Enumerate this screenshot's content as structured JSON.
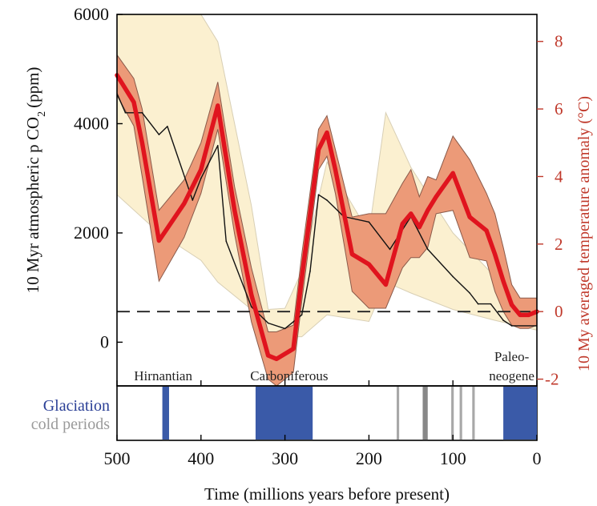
{
  "chart_data": {
    "type": "line",
    "xlabel": "Time (millions years before present)",
    "ylabel_left": "10 Myr atmospheric p CO",
    "ylabel_left_sub": "2",
    "ylabel_left_unit": "(ppm)",
    "ylabel_right": "10 My averaged temperature anomaly (°C)",
    "xlim": [
      500,
      0
    ],
    "ylim_left": [
      -800,
      6000
    ],
    "ylim_right": [
      -2.2,
      8.8
    ],
    "x_ticks": [
      "500",
      "400",
      "300",
      "200",
      "100",
      "0"
    ],
    "x_tick_values": [
      500,
      400,
      300,
      200,
      100,
      0
    ],
    "left_ticks": [
      "0",
      "2000",
      "4000",
      "6000"
    ],
    "left_tick_values": [
      0,
      2000,
      4000,
      6000
    ],
    "right_ticks": [
      "-2",
      "0",
      "2",
      "4",
      "6",
      "8"
    ],
    "right_tick_values": [
      -2,
      0,
      2,
      4,
      6,
      8
    ],
    "colors": {
      "co2_band": "#fbf0d0",
      "co2_band_edge": "#d8cfb5",
      "temp_band": "#ec9a78",
      "temp_band_edge": "#8a5a4a",
      "temp_line": "#e0141e",
      "co2_line": "#111111",
      "right_axis": "#c0392b",
      "glaciation": "#3a5aa8",
      "cold": "#a8a8a8",
      "cold_dark": "#888888",
      "glaciation_label": "#2a3f96",
      "cold_label": "#9a9a9a"
    },
    "reference_line_temp": 0,
    "co2_band": {
      "x": [
        500,
        450,
        400,
        380,
        340,
        320,
        300,
        280,
        250,
        200,
        180,
        150,
        100,
        50,
        0
      ],
      "upper": [
        6000,
        6000,
        6000,
        5500,
        2500,
        600,
        620,
        1300,
        3300,
        2000,
        4200,
        3200,
        2000,
        1200,
        400
      ],
      "lower": [
        2700,
        2000,
        1500,
        1100,
        600,
        100,
        100,
        100,
        500,
        380,
        1100,
        900,
        600,
        400,
        220
      ]
    },
    "co2_line": {
      "x": [
        500,
        490,
        470,
        450,
        440,
        410,
        400,
        390,
        380,
        370,
        340,
        320,
        300,
        280,
        270,
        260,
        250,
        230,
        200,
        175,
        150,
        130,
        100,
        80,
        70,
        55,
        40,
        30,
        0
      ],
      "y": [
        4550,
        4200,
        4200,
        3800,
        3950,
        2600,
        3000,
        3300,
        3600,
        1850,
        650,
        350,
        250,
        500,
        1300,
        2700,
        2600,
        2300,
        2200,
        1700,
        2300,
        1700,
        1200,
        900,
        700,
        700,
        400,
        300,
        300
      ]
    },
    "temp_line": {
      "x": [
        500,
        480,
        470,
        450,
        420,
        400,
        380,
        360,
        340,
        320,
        310,
        290,
        280,
        260,
        250,
        240,
        220,
        200,
        180,
        160,
        150,
        140,
        130,
        120,
        100,
        80,
        60,
        50,
        40,
        30,
        20,
        10,
        0
      ],
      "y": [
        7.0,
        6.2,
        5.0,
        2.1,
        3.2,
        4.2,
        6.1,
        3.0,
        0.5,
        -1.3,
        -1.4,
        -1.1,
        1.0,
        4.8,
        5.3,
        4.2,
        1.7,
        1.4,
        0.8,
        2.6,
        2.9,
        2.5,
        3.0,
        3.4,
        4.1,
        2.8,
        2.4,
        1.7,
        0.9,
        0.2,
        -0.1,
        -0.1,
        0.0
      ]
    },
    "temp_band": {
      "x": [
        500,
        480,
        470,
        450,
        420,
        400,
        380,
        360,
        340,
        320,
        310,
        290,
        280,
        260,
        250,
        240,
        220,
        200,
        180,
        160,
        150,
        140,
        130,
        120,
        100,
        80,
        60,
        50,
        40,
        30,
        20,
        10,
        0
      ],
      "upper": [
        7.6,
        6.9,
        6.0,
        3.0,
        3.9,
        5.0,
        6.8,
        3.7,
        1.3,
        -0.6,
        -0.6,
        -0.4,
        1.7,
        5.4,
        5.8,
        4.8,
        2.8,
        2.9,
        2.9,
        3.8,
        4.2,
        3.4,
        4.0,
        3.9,
        5.2,
        4.5,
        3.5,
        2.9,
        1.9,
        0.8,
        0.4,
        0.4,
        0.4
      ]
    },
    "temp_band_lower": [
      6.4,
      5.5,
      4.0,
      0.9,
      2.2,
      3.5,
      5.4,
      2.3,
      -0.3,
      -2.0,
      -2.2,
      -1.8,
      0.3,
      4.2,
      4.6,
      3.5,
      0.6,
      0.1,
      0.1,
      1.3,
      1.6,
      1.6,
      1.9,
      2.9,
      3.0,
      1.6,
      1.5,
      0.6,
      0.0,
      -0.4,
      -0.5,
      -0.5,
      -0.4
    ],
    "event_labels": [
      {
        "text": "Hirnantian",
        "x": 445
      },
      {
        "text": "Carboniferous",
        "x": 295
      },
      {
        "text": "Paleo-",
        "x": 30
      },
      {
        "text": "neogene",
        "x": 30
      }
    ],
    "legend_glaciation": "Glaciation",
    "legend_cold": "cold periods",
    "glaciation_periods": [
      {
        "start": 446,
        "end": 438
      },
      {
        "start": 335,
        "end": 267
      },
      {
        "start": 40,
        "end": 0
      }
    ],
    "cold_periods": [
      {
        "start": 167,
        "end": 164,
        "tone": "light"
      },
      {
        "start": 136,
        "end": 130,
        "tone": "dark"
      },
      {
        "start": 102,
        "end": 99,
        "tone": "light"
      },
      {
        "start": 92,
        "end": 89,
        "tone": "light"
      },
      {
        "start": 77,
        "end": 74,
        "tone": "light"
      }
    ]
  }
}
